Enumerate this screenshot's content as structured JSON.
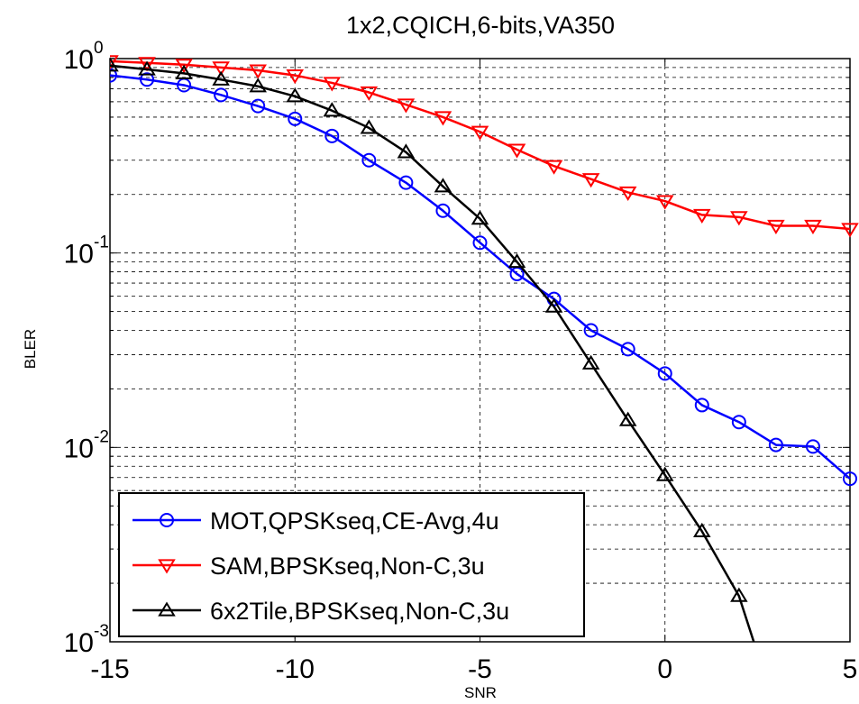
{
  "chart_data": {
    "type": "line",
    "title": "1x2,CQICH,6-bits,VA350",
    "xlabel": "SNR",
    "ylabel": "BLER",
    "xlim": [
      -15,
      5
    ],
    "ylim": [
      0.001,
      1
    ],
    "yscale": "log",
    "grid": true,
    "legend_position": "bottom-left",
    "x_ticks": [
      -15,
      -10,
      -5,
      0,
      5
    ],
    "x_tick_labels": [
      "-15",
      "-10",
      "-5",
      "0",
      "5"
    ],
    "y_ticks": [
      {
        "value": 1,
        "base": "10",
        "exp": "0"
      },
      {
        "value": 0.1,
        "base": "10",
        "exp": "-1"
      },
      {
        "value": 0.01,
        "base": "10",
        "exp": "-2"
      },
      {
        "value": 0.001,
        "base": "10",
        "exp": "-3"
      }
    ],
    "series": [
      {
        "name": "MOT,QPSKseq,CE-Avg,4u",
        "color": "#0000ff",
        "marker": "circle",
        "x": [
          -15,
          -14,
          -13,
          -12,
          -11,
          -10,
          -9,
          -8,
          -7,
          -6,
          -5,
          -4,
          -3,
          -2,
          -1,
          0,
          1,
          2,
          3,
          4,
          5
        ],
        "y": [
          0.82,
          0.78,
          0.73,
          0.65,
          0.57,
          0.49,
          0.4,
          0.3,
          0.23,
          0.165,
          0.113,
          0.078,
          0.058,
          0.04,
          0.032,
          0.024,
          0.0165,
          0.0135,
          0.0103,
          0.0101,
          0.0069
        ]
      },
      {
        "name": "SAM,BPSKseq,Non-C,3u",
        "color": "#ff0000",
        "marker": "triangle-down",
        "x": [
          -15,
          -14,
          -13,
          -12,
          -11,
          -10,
          -9,
          -8,
          -7,
          -6,
          -5,
          -4,
          -3,
          -2,
          -1,
          0,
          1,
          2,
          3,
          4,
          5
        ],
        "y": [
          0.97,
          0.95,
          0.93,
          0.9,
          0.87,
          0.82,
          0.75,
          0.67,
          0.58,
          0.5,
          0.42,
          0.34,
          0.28,
          0.24,
          0.205,
          0.185,
          0.157,
          0.153,
          0.138,
          0.138,
          0.133
        ]
      },
      {
        "name": "6x2Tile,BPSKseq,Non-C,3u",
        "color": "#000000",
        "marker": "triangle-up",
        "x": [
          -15,
          -14,
          -13,
          -12,
          -11,
          -10,
          -9,
          -8,
          -7,
          -6,
          -5,
          -4,
          -3,
          -2,
          -1,
          0,
          1,
          2,
          2.4
        ],
        "y": [
          0.92,
          0.88,
          0.84,
          0.78,
          0.72,
          0.64,
          0.54,
          0.44,
          0.33,
          0.22,
          0.15,
          0.09,
          0.053,
          0.027,
          0.0138,
          0.0072,
          0.0037,
          0.00172,
          0.001
        ],
        "markers_shown": 18
      }
    ]
  }
}
